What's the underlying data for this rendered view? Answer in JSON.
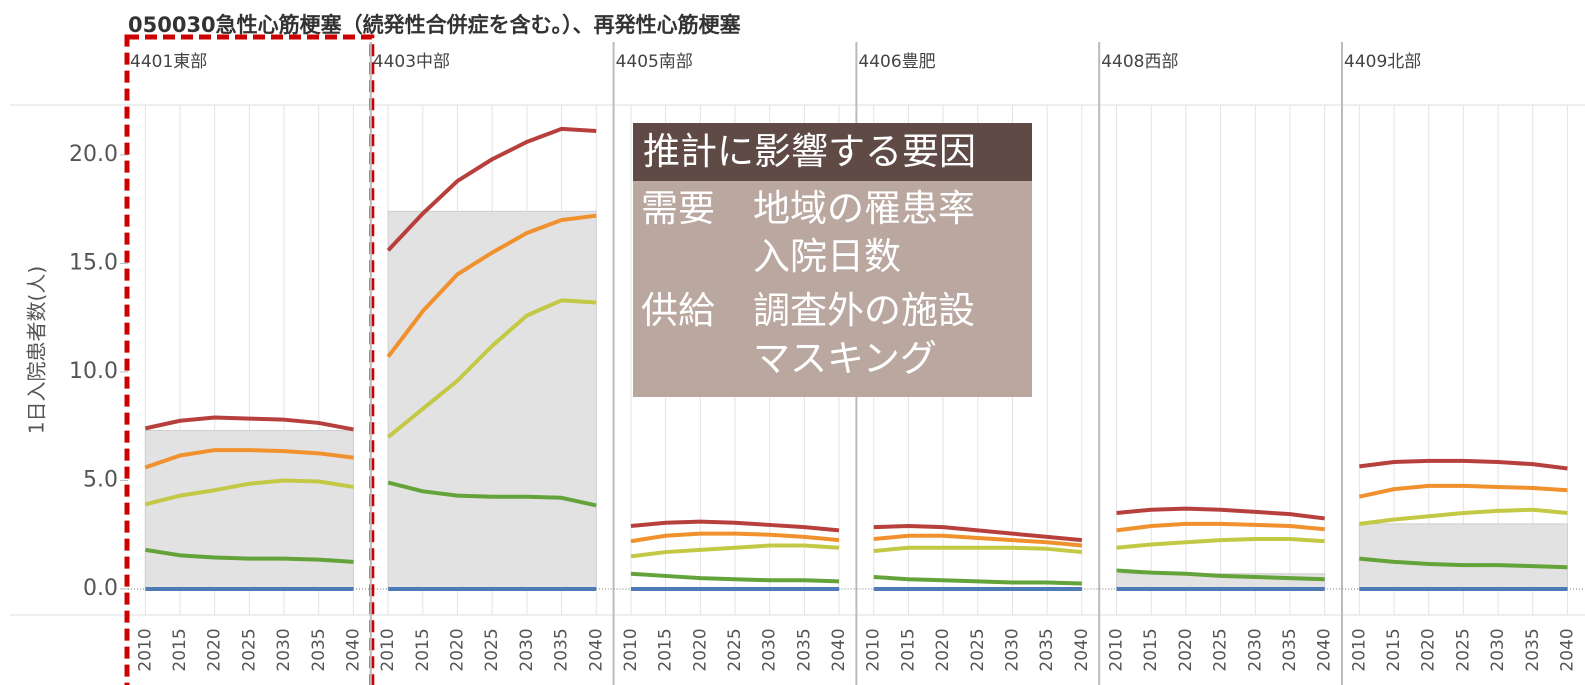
{
  "chart_data": {
    "type": "line",
    "title": "050030急性心筋梗塞（続発性合併症を含む。）、再発性心筋梗塞",
    "y_label": "1日入院患者数(人)",
    "x": [
      2010,
      2015,
      2020,
      2025,
      2030,
      2035,
      2040
    ],
    "xlim": [
      2007.5,
      2042.5
    ],
    "ylim": [
      -1.2,
      22.3
    ],
    "yticks": [
      {
        "value": 0,
        "label": "0.0"
      },
      {
        "value": 5,
        "label": "5.0"
      },
      {
        "value": 10,
        "label": "10.0"
      },
      {
        "value": 15,
        "label": "15.0"
      },
      {
        "value": 20,
        "label": "20.0"
      }
    ],
    "grid": "x",
    "highlight_panel": 0,
    "panels": [
      {
        "name": "4401東部",
        "shade": 7.3,
        "series": [
          {
            "color": "#b8403c",
            "values": [
              7.4,
              7.75,
              7.9,
              7.85,
              7.8,
              7.65,
              7.35
            ]
          },
          {
            "color": "#f0912e",
            "values": [
              5.6,
              6.15,
              6.4,
              6.4,
              6.35,
              6.25,
              6.05
            ]
          },
          {
            "color": "#c3c845",
            "values": [
              3.9,
              4.3,
              4.55,
              4.85,
              5.0,
              4.95,
              4.7
            ]
          },
          {
            "color": "#64a33a",
            "values": [
              1.8,
              1.55,
              1.45,
              1.4,
              1.4,
              1.35,
              1.25
            ]
          },
          {
            "color": "#4e7ab5",
            "values": [
              0,
              0,
              0,
              0,
              0,
              0,
              0
            ]
          }
        ]
      },
      {
        "name": "4403中部",
        "shade": 17.4,
        "series": [
          {
            "color": "#b8403c",
            "values": [
              15.6,
              17.3,
              18.8,
              19.8,
              20.6,
              21.2,
              21.1
            ]
          },
          {
            "color": "#f0912e",
            "values": [
              10.7,
              12.8,
              14.5,
              15.5,
              16.4,
              17.0,
              17.2
            ]
          },
          {
            "color": "#c3c845",
            "values": [
              7.0,
              8.3,
              9.6,
              11.2,
              12.6,
              13.3,
              13.2
            ]
          },
          {
            "color": "#64a33a",
            "values": [
              4.9,
              4.5,
              4.3,
              4.25,
              4.25,
              4.2,
              3.85
            ]
          },
          {
            "color": "#4e7ab5",
            "values": [
              0,
              0,
              0,
              0,
              0,
              0,
              0
            ]
          }
        ]
      },
      {
        "name": "4405南部",
        "shade": null,
        "series": [
          {
            "color": "#b8403c",
            "values": [
              2.9,
              3.05,
              3.1,
              3.05,
              2.95,
              2.85,
              2.7
            ]
          },
          {
            "color": "#f0912e",
            "values": [
              2.2,
              2.45,
              2.55,
              2.55,
              2.5,
              2.4,
              2.25
            ]
          },
          {
            "color": "#c3c845",
            "values": [
              1.5,
              1.7,
              1.8,
              1.9,
              2.0,
              2.0,
              1.9
            ]
          },
          {
            "color": "#64a33a",
            "values": [
              0.7,
              0.6,
              0.5,
              0.45,
              0.4,
              0.4,
              0.35
            ]
          },
          {
            "color": "#4e7ab5",
            "values": [
              0,
              0,
              0,
              0,
              0,
              0,
              0
            ]
          }
        ]
      },
      {
        "name": "4406豊肥",
        "shade": null,
        "series": [
          {
            "color": "#b8403c",
            "values": [
              2.85,
              2.9,
              2.85,
              2.7,
              2.55,
              2.4,
              2.25
            ]
          },
          {
            "color": "#f0912e",
            "values": [
              2.3,
              2.45,
              2.45,
              2.35,
              2.25,
              2.15,
              2.0
            ]
          },
          {
            "color": "#c3c845",
            "values": [
              1.75,
              1.9,
              1.9,
              1.9,
              1.9,
              1.85,
              1.7
            ]
          },
          {
            "color": "#64a33a",
            "values": [
              0.55,
              0.45,
              0.4,
              0.35,
              0.3,
              0.3,
              0.25
            ]
          },
          {
            "color": "#4e7ab5",
            "values": [
              0,
              0,
              0,
              0,
              0,
              0,
              0
            ]
          }
        ]
      },
      {
        "name": "4408西部",
        "shade": 0.7,
        "series": [
          {
            "color": "#b8403c",
            "values": [
              3.5,
              3.65,
              3.7,
              3.65,
              3.55,
              3.45,
              3.25
            ]
          },
          {
            "color": "#f0912e",
            "values": [
              2.7,
              2.9,
              3.0,
              3.0,
              2.95,
              2.9,
              2.75
            ]
          },
          {
            "color": "#c3c845",
            "values": [
              1.9,
              2.05,
              2.15,
              2.25,
              2.3,
              2.3,
              2.2
            ]
          },
          {
            "color": "#64a33a",
            "values": [
              0.85,
              0.75,
              0.7,
              0.6,
              0.55,
              0.5,
              0.45
            ]
          },
          {
            "color": "#4e7ab5",
            "values": [
              0,
              0,
              0,
              0,
              0,
              0,
              0
            ]
          }
        ]
      },
      {
        "name": "4409北部",
        "shade": 3.0,
        "series": [
          {
            "color": "#b8403c",
            "values": [
              5.65,
              5.85,
              5.9,
              5.9,
              5.85,
              5.75,
              5.55
            ]
          },
          {
            "color": "#f0912e",
            "values": [
              4.25,
              4.6,
              4.75,
              4.75,
              4.7,
              4.65,
              4.55
            ]
          },
          {
            "color": "#c3c845",
            "values": [
              3.0,
              3.2,
              3.35,
              3.5,
              3.6,
              3.65,
              3.5
            ]
          },
          {
            "color": "#64a33a",
            "values": [
              1.4,
              1.25,
              1.15,
              1.1,
              1.1,
              1.05,
              1.0
            ]
          },
          {
            "color": "#4e7ab5",
            "values": [
              0,
              0,
              0,
              0,
              0,
              0,
              0
            ]
          }
        ]
      }
    ]
  },
  "annotation": {
    "header": "推計に影響する要因",
    "rows": [
      {
        "label": "需要",
        "items": [
          "地域の罹患率",
          "入院日数"
        ]
      },
      {
        "label": "供給",
        "items": [
          "調査外の施設",
          "マスキング"
        ]
      }
    ]
  }
}
